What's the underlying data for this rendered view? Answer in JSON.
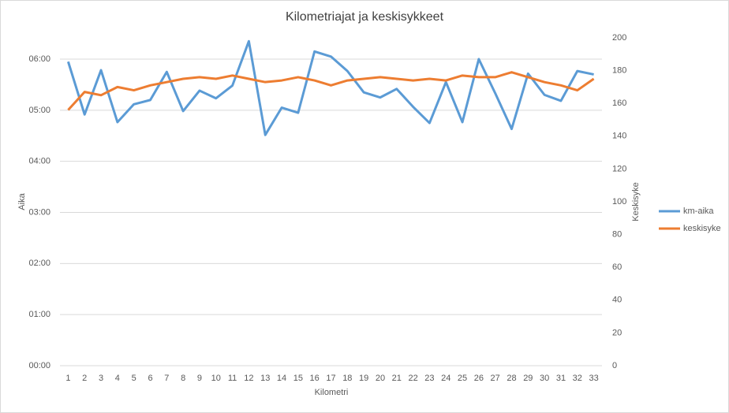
{
  "chart_data": {
    "type": "line",
    "title": "Kilometriajat ja keskisykkeet",
    "x_label": "Kilometri",
    "y_label": "Aika",
    "y2_label": "Keskisyke",
    "categories": [
      "1",
      "2",
      "3",
      "4",
      "5",
      "6",
      "7",
      "8",
      "9",
      "10",
      "11",
      "12",
      "13",
      "14",
      "15",
      "16",
      "17",
      "18",
      "19",
      "20",
      "21",
      "22",
      "23",
      "24",
      "25",
      "26",
      "27",
      "28",
      "29",
      "30",
      "31",
      "32",
      "33"
    ],
    "ylim": [
      0,
      385
    ],
    "yticks": [
      {
        "value": 0,
        "label": "00:00"
      },
      {
        "value": 60,
        "label": "01:00"
      },
      {
        "value": 120,
        "label": "02:00"
      },
      {
        "value": 180,
        "label": "03:00"
      },
      {
        "value": 240,
        "label": "04:00"
      },
      {
        "value": 300,
        "label": "05:00"
      },
      {
        "value": 360,
        "label": "06:00"
      }
    ],
    "y2lim": [
      0,
      200
    ],
    "y2ticks": [
      0,
      20,
      40,
      60,
      80,
      100,
      120,
      140,
      160,
      180,
      200
    ],
    "grid": true,
    "legend": "right",
    "series": [
      {
        "name": "km-aika",
        "color": "#5b9bd5",
        "values": [
          357,
          295,
          347,
          286,
          307,
          312,
          345,
          299,
          323,
          314,
          329,
          381,
          271,
          303,
          297,
          369,
          363,
          346,
          321,
          315,
          325,
          304,
          285,
          333,
          286,
          360,
          320,
          278,
          343,
          318,
          311,
          346,
          342
        ]
      },
      {
        "name": "keskisyke",
        "color": "#ed7d31",
        "axis": "y2",
        "values": [
          156,
          167,
          165,
          170,
          168,
          171,
          173,
          175,
          176,
          175,
          177,
          175,
          173,
          174,
          176,
          174,
          171,
          174,
          175,
          176,
          175,
          174,
          175,
          174,
          177,
          176,
          176,
          179,
          176,
          173,
          171,
          168,
          175
        ]
      }
    ]
  }
}
